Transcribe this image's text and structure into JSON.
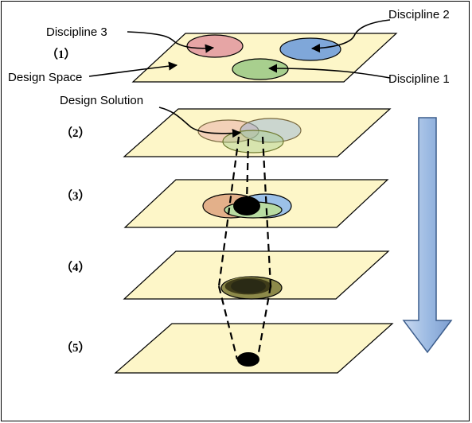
{
  "labels": {
    "discipline_1": "Discipline 1",
    "discipline_2": "Discipline 2",
    "discipline_3": "Discipline 3",
    "design_space": "Design Space",
    "design_solution": "Design Solution"
  },
  "steps": [
    "（1）",
    "（2）",
    "（3）",
    "（4）",
    "（5）"
  ],
  "colors": {
    "plane_fill": "#fdf6c8",
    "discipline_1": "#a8cf8e",
    "discipline_2": "#7fa7d9",
    "discipline_3": "#e6a5a5",
    "arrow_fill": "#a9c2e6",
    "arrow_stroke": "#3c5d8c",
    "solution": "#000000"
  }
}
